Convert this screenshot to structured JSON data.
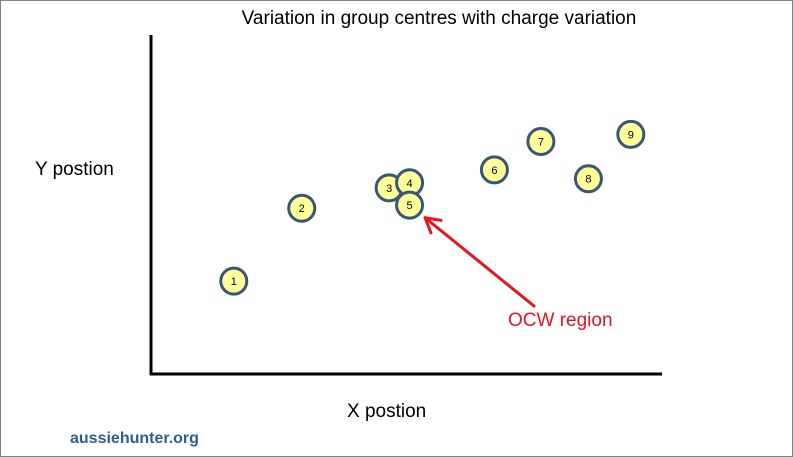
{
  "chart_data": {
    "type": "scatter",
    "title": "Variation in group centres with charge variation",
    "xlabel": "X postion",
    "ylabel": "Y postion",
    "xlim": [
      0,
      100
    ],
    "ylim": [
      0,
      100
    ],
    "grid": false,
    "ticks": false,
    "points": [
      {
        "label": "1",
        "x": 16.2,
        "y": 27.4
      },
      {
        "label": "2",
        "x": 29.5,
        "y": 48.9
      },
      {
        "label": "3",
        "x": 46.6,
        "y": 54.9
      },
      {
        "label": "4",
        "x": 50.6,
        "y": 56.4
      },
      {
        "label": "5",
        "x": 50.6,
        "y": 49.8
      },
      {
        "label": "6",
        "x": 67.2,
        "y": 60.2
      },
      {
        "label": "7",
        "x": 76.3,
        "y": 68.6
      },
      {
        "label": "8",
        "x": 85.6,
        "y": 57.6
      },
      {
        "label": "9",
        "x": 93.9,
        "y": 70.7
      }
    ],
    "annotation": {
      "text": "OCW region",
      "target_point": "5",
      "color": "#e8141c"
    },
    "marker_fill": "#ffff99",
    "marker_stroke": "#3b5578"
  },
  "credit": "aussiehunter.org"
}
